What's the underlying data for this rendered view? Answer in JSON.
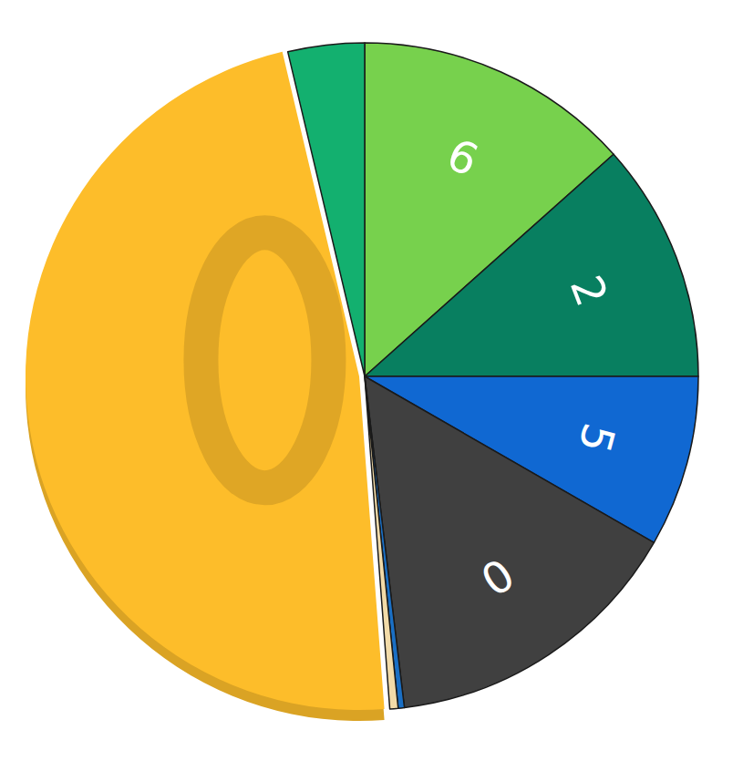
{
  "chart_data": {
    "type": "pie",
    "categories": [
      "6",
      "2",
      "5",
      "0",
      null,
      null,
      null,
      null
    ],
    "values": [
      13.4,
      11.6,
      8.3,
      14.8,
      0.3,
      0.4,
      47.5,
      3.7
    ],
    "colors": [
      "#77d14d",
      "#087f60",
      "#1068d2",
      "#404040",
      "#1a6fc4",
      "#f2dba8",
      "#fdbd2a",
      "#13b06f"
    ]
  }
}
